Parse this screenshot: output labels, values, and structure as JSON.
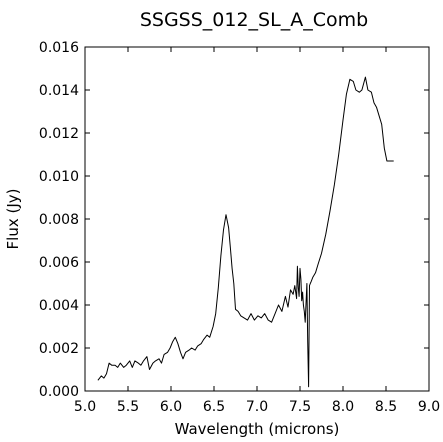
{
  "chart_data": {
    "type": "line",
    "title": "SSGSS_012_SL_A_Comb",
    "xlabel": "Wavelength (microns)",
    "ylabel": "Flux (Jy)",
    "xlim": [
      5.0,
      9.0
    ],
    "ylim": [
      0.0,
      0.016
    ],
    "xticks": [
      "5.0",
      "5.5",
      "6.0",
      "6.5",
      "7.0",
      "7.5",
      "8.0",
      "8.5",
      "9.0"
    ],
    "yticks": [
      "0.000",
      "0.002",
      "0.004",
      "0.006",
      "0.008",
      "0.010",
      "0.012",
      "0.014",
      "0.016"
    ],
    "grid": false,
    "series": [
      {
        "color": "#000000",
        "x": [
          5.15,
          5.19,
          5.22,
          5.25,
          5.28,
          5.31,
          5.35,
          5.38,
          5.41,
          5.45,
          5.48,
          5.52,
          5.55,
          5.58,
          5.62,
          5.65,
          5.68,
          5.72,
          5.75,
          5.79,
          5.82,
          5.86,
          5.89,
          5.92,
          5.96,
          5.99,
          6.02,
          6.05,
          6.08,
          6.11,
          6.14,
          6.17,
          6.21,
          6.24,
          6.28,
          6.31,
          6.35,
          6.38,
          6.42,
          6.45,
          6.49,
          6.52,
          6.55,
          6.58,
          6.61,
          6.64,
          6.67,
          6.69,
          6.71,
          6.73,
          6.75,
          6.78,
          6.81,
          6.85,
          6.89,
          6.93,
          6.97,
          7.01,
          7.05,
          7.09,
          7.13,
          7.17,
          7.21,
          7.25,
          7.29,
          7.33,
          7.36,
          7.39,
          7.42,
          7.44,
          7.46,
          7.47,
          7.48,
          7.49,
          7.5,
          7.51,
          7.52,
          7.53,
          7.54,
          7.55,
          7.56,
          7.58,
          7.59,
          7.6,
          7.61,
          7.62,
          7.63,
          7.65,
          7.68,
          7.71,
          7.75,
          7.8,
          7.85,
          7.9,
          7.95,
          8.0,
          8.04,
          8.08,
          8.12,
          8.15,
          8.19,
          8.22,
          8.26,
          8.29,
          8.33,
          8.36,
          8.39,
          8.42,
          8.45,
          8.48,
          8.51,
          8.53,
          8.55,
          8.57,
          8.59
        ],
        "y": [
          0.0005,
          0.0007,
          0.0006,
          0.0008,
          0.0013,
          0.0012,
          0.0012,
          0.0011,
          0.0013,
          0.0011,
          0.0012,
          0.0014,
          0.0011,
          0.0014,
          0.0013,
          0.0012,
          0.0014,
          0.0016,
          0.001,
          0.0013,
          0.0014,
          0.0015,
          0.0013,
          0.0017,
          0.0018,
          0.002,
          0.0023,
          0.0025,
          0.0022,
          0.0018,
          0.0015,
          0.0018,
          0.0019,
          0.002,
          0.0019,
          0.0021,
          0.0022,
          0.0024,
          0.0026,
          0.0025,
          0.003,
          0.0036,
          0.0048,
          0.0063,
          0.0075,
          0.0082,
          0.0076,
          0.0067,
          0.0057,
          0.005,
          0.0038,
          0.0037,
          0.0035,
          0.0034,
          0.0033,
          0.0036,
          0.0033,
          0.0035,
          0.0034,
          0.0036,
          0.0033,
          0.0032,
          0.0036,
          0.004,
          0.0037,
          0.0044,
          0.0039,
          0.0047,
          0.0045,
          0.0049,
          0.0043,
          0.0058,
          0.0048,
          0.0044,
          0.0057,
          0.0052,
          0.0042,
          0.0046,
          0.004,
          0.0037,
          0.0032,
          0.005,
          0.0023,
          0.0002,
          0.0049,
          0.005,
          0.0051,
          0.0053,
          0.0055,
          0.0059,
          0.0064,
          0.0073,
          0.0084,
          0.0096,
          0.011,
          0.0126,
          0.0138,
          0.0145,
          0.0144,
          0.014,
          0.0139,
          0.014,
          0.0146,
          0.014,
          0.0139,
          0.0134,
          0.0132,
          0.0128,
          0.0124,
          0.0113,
          0.0107,
          0.0107,
          0.0107,
          0.0107,
          0.0107
        ]
      }
    ]
  }
}
